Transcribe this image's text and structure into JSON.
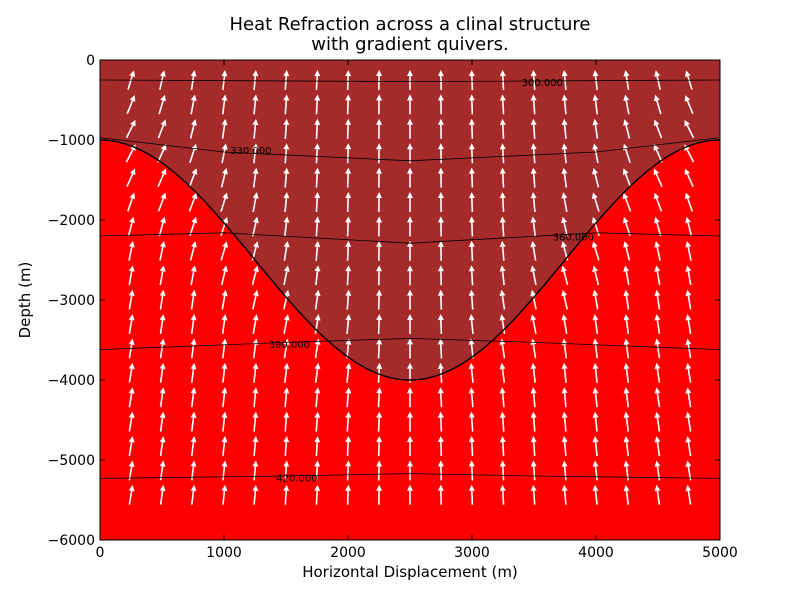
{
  "chart_data": {
    "type": "contour",
    "title_line1": "Heat Refraction across a clinal structure",
    "title_line2": "with gradient quivers.",
    "xlabel": "Horizontal Displacement (m)",
    "ylabel": "Depth (m)",
    "xlim": [
      0,
      5000
    ],
    "ylim": [
      -6000,
      0
    ],
    "x_ticks": [
      "0",
      "1000",
      "2000",
      "3000",
      "4000",
      "5000"
    ],
    "y_ticks": [
      "0",
      "−1000",
      "−2000",
      "−3000",
      "−4000",
      "−5000",
      "−6000"
    ],
    "grid": false,
    "layers": [
      {
        "name": "upper layer",
        "color": "#a52a2a"
      },
      {
        "name": "lower layer",
        "color": "#ff0000"
      }
    ],
    "interface": {
      "shape": "cosine",
      "x_edges": [
        0,
        5000
      ],
      "depth_at_edges": -1000,
      "x_trough": 2500,
      "depth_at_trough": -4000
    },
    "contours": [
      {
        "label": "300.000",
        "levels_y": [
          [
            0,
            -250
          ],
          [
            2500,
            -270
          ],
          [
            5000,
            -250
          ]
        ],
        "label_x": 3400,
        "label_y": -290
      },
      {
        "label": "330.000",
        "levels_y": [
          [
            0,
            -970
          ],
          [
            1000,
            -1150
          ],
          [
            2500,
            -1260
          ],
          [
            4000,
            -1150
          ],
          [
            5000,
            -970
          ]
        ],
        "label_x": 1050,
        "label_y": -1140
      },
      {
        "label": "360.000",
        "levels_y": [
          [
            0,
            -2200
          ],
          [
            1000,
            -2160
          ],
          [
            2500,
            -2290
          ],
          [
            4000,
            -2160
          ],
          [
            5000,
            -2200
          ]
        ],
        "label_x": 3650,
        "label_y": -2220
      },
      {
        "label": "390.000",
        "levels_y": [
          [
            0,
            -3620
          ],
          [
            1500,
            -3530
          ],
          [
            2500,
            -3480
          ],
          [
            3500,
            -3530
          ],
          [
            5000,
            -3620
          ]
        ],
        "label_x": 1360,
        "label_y": -3560
      },
      {
        "label": "420.000",
        "levels_y": [
          [
            0,
            -5230
          ],
          [
            1500,
            -5200
          ],
          [
            2500,
            -5170
          ],
          [
            3500,
            -5200
          ],
          [
            5000,
            -5230
          ]
        ],
        "label_x": 1420,
        "label_y": -5230
      }
    ],
    "quiver": {
      "x_start": 250,
      "x_step": 250,
      "x_count": 19,
      "y_start": -250,
      "y_step": -305,
      "y_count": 18,
      "color": "#ffffff",
      "direction": "upward, refracted toward the basin center"
    }
  }
}
